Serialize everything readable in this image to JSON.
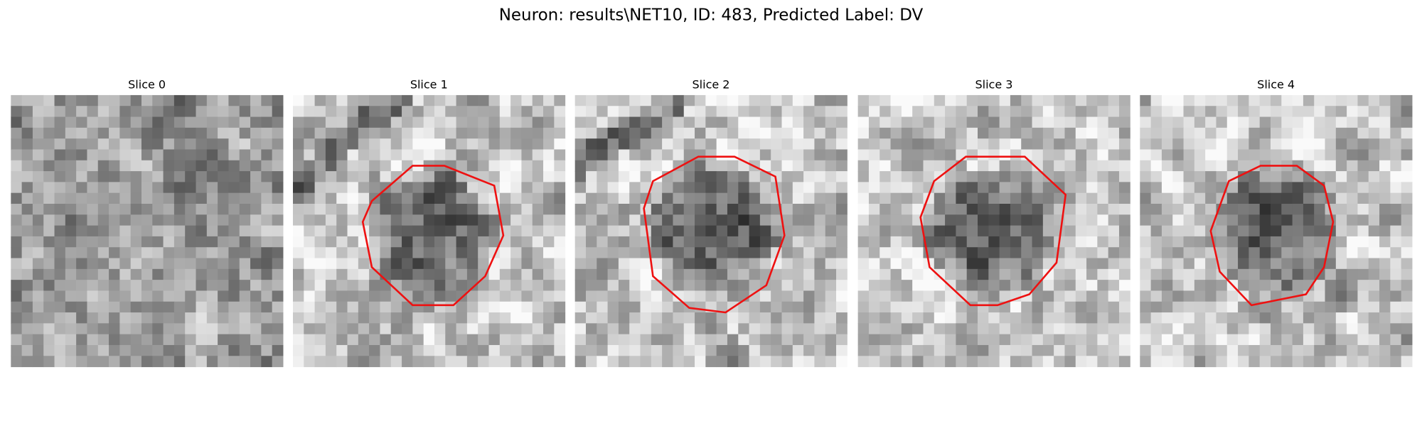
{
  "title": "Neuron: results\\NET10, ID: 483, Predicted Label: DV",
  "panels": [
    {
      "title": "Slice 0"
    },
    {
      "title": "Slice 1"
    },
    {
      "title": "Slice 2"
    },
    {
      "title": "Slice 3"
    },
    {
      "title": "Slice 4"
    }
  ]
}
